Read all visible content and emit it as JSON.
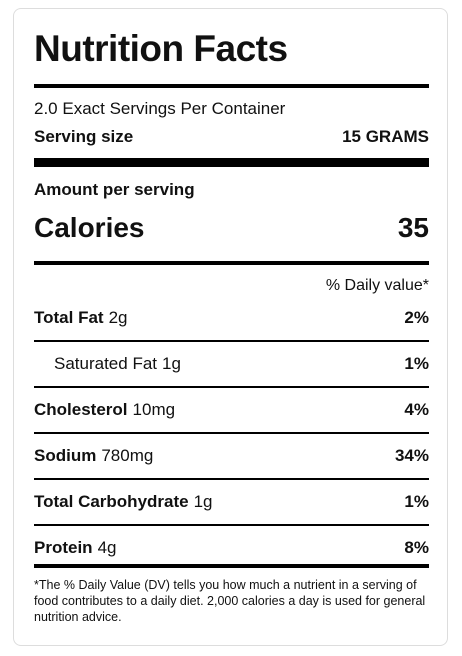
{
  "label": {
    "title": "Nutrition Facts",
    "servings": "2.0 Exact Servings Per Container",
    "serving_size": {
      "label": "Serving size",
      "value": "15 GRAMS"
    },
    "amount_per_serving": "Amount per serving",
    "calories": {
      "label": "Calories",
      "value": "35"
    },
    "daily_value_header": "% Daily value*",
    "rows": [
      {
        "name": "Total Fat",
        "amount": "2g",
        "dv": "2%"
      },
      {
        "name": "Saturated Fat",
        "amount": "1g",
        "dv": "1%"
      },
      {
        "name": "Cholesterol",
        "amount": "10mg",
        "dv": "4%"
      },
      {
        "name": "Sodium",
        "amount": "780mg",
        "dv": "34%"
      },
      {
        "name": "Total Carbohydrate",
        "amount": "1g",
        "dv": "1%"
      },
      {
        "name": "Protein",
        "amount": "4g",
        "dv": "8%"
      }
    ],
    "footnote": "*The % Daily Value (DV) tells you how much a nutrient in a serving of food contributes to a daily diet. 2,000 calories a day is used for general nutrition advice."
  }
}
